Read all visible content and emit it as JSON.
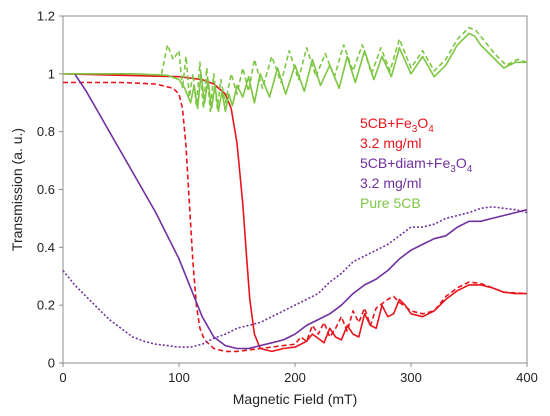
{
  "chart_data": {
    "type": "line",
    "xlabel": "Magnetic Field (mT)",
    "ylabel": "Transmission (a. u.)",
    "xlim": [
      0,
      400
    ],
    "ylim": [
      0,
      1.2
    ],
    "xticks": [
      "0",
      "100",
      "200",
      "300",
      "400"
    ],
    "yticks": [
      "0",
      "0.2",
      "0.4",
      "0.6",
      "0.8",
      "1",
      "1.2"
    ],
    "grid": false,
    "legend": {
      "placement": "right",
      "entries": [
        {
          "base": "5CB+Fe",
          "sub": "3",
          "mid": "O",
          "sub2": "4",
          "color": "#e8141c"
        },
        {
          "base": "3.2 mg/ml",
          "sub": "",
          "mid": "",
          "sub2": "",
          "color": "#e8141c"
        },
        {
          "base": "5CB+diam+Fe",
          "sub": "3",
          "mid": "O",
          "sub2": "4",
          "color": "#7030a0"
        },
        {
          "base": "3.2 mg/ml",
          "sub": "",
          "mid": "",
          "sub2": "",
          "color": "#7030a0"
        },
        {
          "base": "Pure 5CB",
          "sub": "",
          "mid": "",
          "sub2": "",
          "color": "#7dc642"
        }
      ]
    },
    "series": [
      {
        "color": "#e8141c",
        "style": "solid",
        "points": [
          [
            0,
            1.0
          ],
          [
            50,
            0.995
          ],
          [
            100,
            0.99
          ],
          [
            120,
            0.98
          ],
          [
            130,
            0.965
          ],
          [
            140,
            0.93
          ],
          [
            145,
            0.88
          ],
          [
            150,
            0.76
          ],
          [
            155,
            0.55
          ],
          [
            158,
            0.38
          ],
          [
            161,
            0.22
          ],
          [
            165,
            0.1
          ],
          [
            170,
            0.05
          ],
          [
            180,
            0.04
          ],
          [
            190,
            0.05
          ],
          [
            200,
            0.055
          ],
          [
            210,
            0.075
          ],
          [
            215,
            0.1
          ],
          [
            220,
            0.085
          ],
          [
            225,
            0.07
          ],
          [
            230,
            0.12
          ],
          [
            235,
            0.09
          ],
          [
            240,
            0.08
          ],
          [
            245,
            0.13
          ],
          [
            250,
            0.1
          ],
          [
            255,
            0.09
          ],
          [
            260,
            0.17
          ],
          [
            265,
            0.13
          ],
          [
            270,
            0.12
          ],
          [
            275,
            0.2
          ],
          [
            280,
            0.16
          ],
          [
            285,
            0.17
          ],
          [
            290,
            0.22
          ],
          [
            295,
            0.2
          ],
          [
            300,
            0.17
          ],
          [
            310,
            0.16
          ],
          [
            320,
            0.18
          ],
          [
            330,
            0.22
          ],
          [
            340,
            0.25
          ],
          [
            350,
            0.27
          ],
          [
            360,
            0.27
          ],
          [
            370,
            0.26
          ],
          [
            380,
            0.245
          ],
          [
            390,
            0.24
          ],
          [
            400,
            0.24
          ]
        ]
      },
      {
        "color": "#e8141c",
        "style": "dashed",
        "points": [
          [
            0,
            0.97
          ],
          [
            50,
            0.97
          ],
          [
            80,
            0.965
          ],
          [
            95,
            0.95
          ],
          [
            100,
            0.93
          ],
          [
            103,
            0.88
          ],
          [
            106,
            0.75
          ],
          [
            109,
            0.55
          ],
          [
            112,
            0.35
          ],
          [
            115,
            0.2
          ],
          [
            118,
            0.12
          ],
          [
            122,
            0.08
          ],
          [
            130,
            0.05
          ],
          [
            140,
            0.04
          ],
          [
            150,
            0.04
          ],
          [
            160,
            0.045
          ],
          [
            170,
            0.05
          ],
          [
            180,
            0.055
          ],
          [
            190,
            0.06
          ],
          [
            200,
            0.065
          ],
          [
            205,
            0.09
          ],
          [
            210,
            0.075
          ],
          [
            215,
            0.13
          ],
          [
            220,
            0.1
          ],
          [
            225,
            0.14
          ],
          [
            230,
            0.09
          ],
          [
            235,
            0.12
          ],
          [
            240,
            0.16
          ],
          [
            245,
            0.11
          ],
          [
            250,
            0.18
          ],
          [
            255,
            0.14
          ],
          [
            260,
            0.19
          ],
          [
            265,
            0.13
          ],
          [
            270,
            0.19
          ],
          [
            280,
            0.22
          ],
          [
            285,
            0.23
          ],
          [
            290,
            0.21
          ],
          [
            300,
            0.18
          ],
          [
            310,
            0.17
          ],
          [
            320,
            0.18
          ],
          [
            330,
            0.23
          ],
          [
            340,
            0.26
          ],
          [
            350,
            0.28
          ],
          [
            360,
            0.275
          ],
          [
            370,
            0.26
          ],
          [
            380,
            0.245
          ],
          [
            400,
            0.24
          ]
        ]
      },
      {
        "color": "#7030a0",
        "style": "solid",
        "points": [
          [
            10,
            1.0
          ],
          [
            20,
            0.94
          ],
          [
            30,
            0.87
          ],
          [
            40,
            0.8
          ],
          [
            50,
            0.73
          ],
          [
            60,
            0.66
          ],
          [
            70,
            0.59
          ],
          [
            80,
            0.52
          ],
          [
            90,
            0.44
          ],
          [
            100,
            0.36
          ],
          [
            110,
            0.26
          ],
          [
            120,
            0.16
          ],
          [
            130,
            0.09
          ],
          [
            140,
            0.06
          ],
          [
            150,
            0.05
          ],
          [
            160,
            0.05
          ],
          [
            170,
            0.06
          ],
          [
            180,
            0.07
          ],
          [
            190,
            0.08
          ],
          [
            200,
            0.1
          ],
          [
            210,
            0.13
          ],
          [
            220,
            0.15
          ],
          [
            230,
            0.17
          ],
          [
            240,
            0.2
          ],
          [
            250,
            0.24
          ],
          [
            260,
            0.27
          ],
          [
            270,
            0.29
          ],
          [
            280,
            0.32
          ],
          [
            290,
            0.36
          ],
          [
            300,
            0.39
          ],
          [
            310,
            0.41
          ],
          [
            320,
            0.43
          ],
          [
            330,
            0.44
          ],
          [
            340,
            0.47
          ],
          [
            350,
            0.49
          ],
          [
            360,
            0.49
          ],
          [
            370,
            0.5
          ],
          [
            380,
            0.51
          ],
          [
            390,
            0.52
          ],
          [
            400,
            0.53
          ]
        ]
      },
      {
        "color": "#7030a0",
        "style": "dotted",
        "points": [
          [
            0,
            0.32
          ],
          [
            10,
            0.27
          ],
          [
            20,
            0.23
          ],
          [
            30,
            0.19
          ],
          [
            40,
            0.15
          ],
          [
            50,
            0.12
          ],
          [
            60,
            0.09
          ],
          [
            70,
            0.075
          ],
          [
            80,
            0.065
          ],
          [
            90,
            0.06
          ],
          [
            100,
            0.055
          ],
          [
            110,
            0.055
          ],
          [
            120,
            0.065
          ],
          [
            130,
            0.085
          ],
          [
            140,
            0.1
          ],
          [
            150,
            0.12
          ],
          [
            160,
            0.13
          ],
          [
            170,
            0.14
          ],
          [
            180,
            0.16
          ],
          [
            190,
            0.18
          ],
          [
            200,
            0.2
          ],
          [
            210,
            0.22
          ],
          [
            220,
            0.24
          ],
          [
            230,
            0.28
          ],
          [
            240,
            0.31
          ],
          [
            250,
            0.35
          ],
          [
            260,
            0.37
          ],
          [
            270,
            0.39
          ],
          [
            280,
            0.41
          ],
          [
            290,
            0.44
          ],
          [
            300,
            0.47
          ],
          [
            310,
            0.47
          ],
          [
            320,
            0.48
          ],
          [
            330,
            0.5
          ],
          [
            340,
            0.51
          ],
          [
            350,
            0.52
          ],
          [
            360,
            0.535
          ],
          [
            370,
            0.54
          ],
          [
            380,
            0.535
          ],
          [
            390,
            0.53
          ],
          [
            400,
            0.52
          ]
        ]
      },
      {
        "color": "#7dc642",
        "style": "solid",
        "points": [
          [
            0,
            1.0
          ],
          [
            60,
            1.0
          ],
          [
            90,
            0.995
          ],
          [
            100,
            0.98
          ],
          [
            105,
            0.95
          ],
          [
            110,
            0.9
          ],
          [
            113,
            0.96
          ],
          [
            116,
            0.88
          ],
          [
            119,
            1.0
          ],
          [
            122,
            0.9
          ],
          [
            125,
            0.98
          ],
          [
            128,
            0.88
          ],
          [
            131,
            0.96
          ],
          [
            134,
            0.87
          ],
          [
            137,
            0.94
          ],
          [
            140,
            0.87
          ],
          [
            143,
            0.93
          ],
          [
            146,
            0.89
          ],
          [
            150,
            0.96
          ],
          [
            155,
            0.92
          ],
          [
            160,
            0.99
          ],
          [
            165,
            0.9
          ],
          [
            170,
            1.0
          ],
          [
            178,
            0.92
          ],
          [
            185,
            1.02
          ],
          [
            192,
            0.93
          ],
          [
            200,
            1.03
          ],
          [
            208,
            0.94
          ],
          [
            215,
            1.05
          ],
          [
            222,
            0.96
          ],
          [
            230,
            1.03
          ],
          [
            238,
            0.95
          ],
          [
            245,
            1.06
          ],
          [
            252,
            0.97
          ],
          [
            260,
            1.08
          ],
          [
            268,
            0.98
          ],
          [
            275,
            1.06
          ],
          [
            283,
            0.99
          ],
          [
            290,
            1.09
          ],
          [
            300,
            1.0
          ],
          [
            310,
            1.06
          ],
          [
            320,
            0.99
          ],
          [
            330,
            1.03
          ],
          [
            340,
            1.1
          ],
          [
            350,
            1.14
          ],
          [
            355,
            1.13
          ],
          [
            360,
            1.1
          ],
          [
            370,
            1.06
          ],
          [
            380,
            1.02
          ],
          [
            390,
            1.04
          ],
          [
            400,
            1.04
          ]
        ]
      },
      {
        "color": "#7dc642",
        "style": "dashed",
        "points": [
          [
            85,
            1.0
          ],
          [
            90,
            1.1
          ],
          [
            95,
            1.05
          ],
          [
            100,
            1.08
          ],
          [
            103,
            0.95
          ],
          [
            106,
            1.06
          ],
          [
            109,
            0.92
          ],
          [
            112,
            1.0
          ],
          [
            115,
            0.89
          ],
          [
            118,
            1.04
          ],
          [
            121,
            0.88
          ],
          [
            124,
            1.02
          ],
          [
            127,
            0.87
          ],
          [
            130,
            1.0
          ],
          [
            133,
            0.88
          ],
          [
            136,
            0.98
          ],
          [
            140,
            0.9
          ],
          [
            145,
            1.0
          ],
          [
            150,
            0.93
          ],
          [
            155,
            1.02
          ],
          [
            160,
            0.94
          ],
          [
            165,
            1.05
          ],
          [
            172,
            0.95
          ],
          [
            180,
            1.06
          ],
          [
            188,
            0.97
          ],
          [
            195,
            1.08
          ],
          [
            203,
            0.98
          ],
          [
            210,
            1.09
          ],
          [
            218,
            0.99
          ],
          [
            226,
            1.07
          ],
          [
            234,
            0.99
          ],
          [
            242,
            1.1
          ],
          [
            250,
            1.01
          ],
          [
            258,
            1.1
          ],
          [
            266,
            1.0
          ],
          [
            274,
            1.09
          ],
          [
            282,
            1.01
          ],
          [
            290,
            1.12
          ],
          [
            300,
            1.02
          ],
          [
            310,
            1.08
          ],
          [
            320,
            1.01
          ],
          [
            330,
            1.05
          ],
          [
            340,
            1.12
          ],
          [
            350,
            1.16
          ],
          [
            356,
            1.15
          ],
          [
            362,
            1.12
          ],
          [
            372,
            1.07
          ],
          [
            382,
            1.03
          ],
          [
            392,
            1.05
          ],
          [
            400,
            1.04
          ]
        ]
      }
    ]
  }
}
